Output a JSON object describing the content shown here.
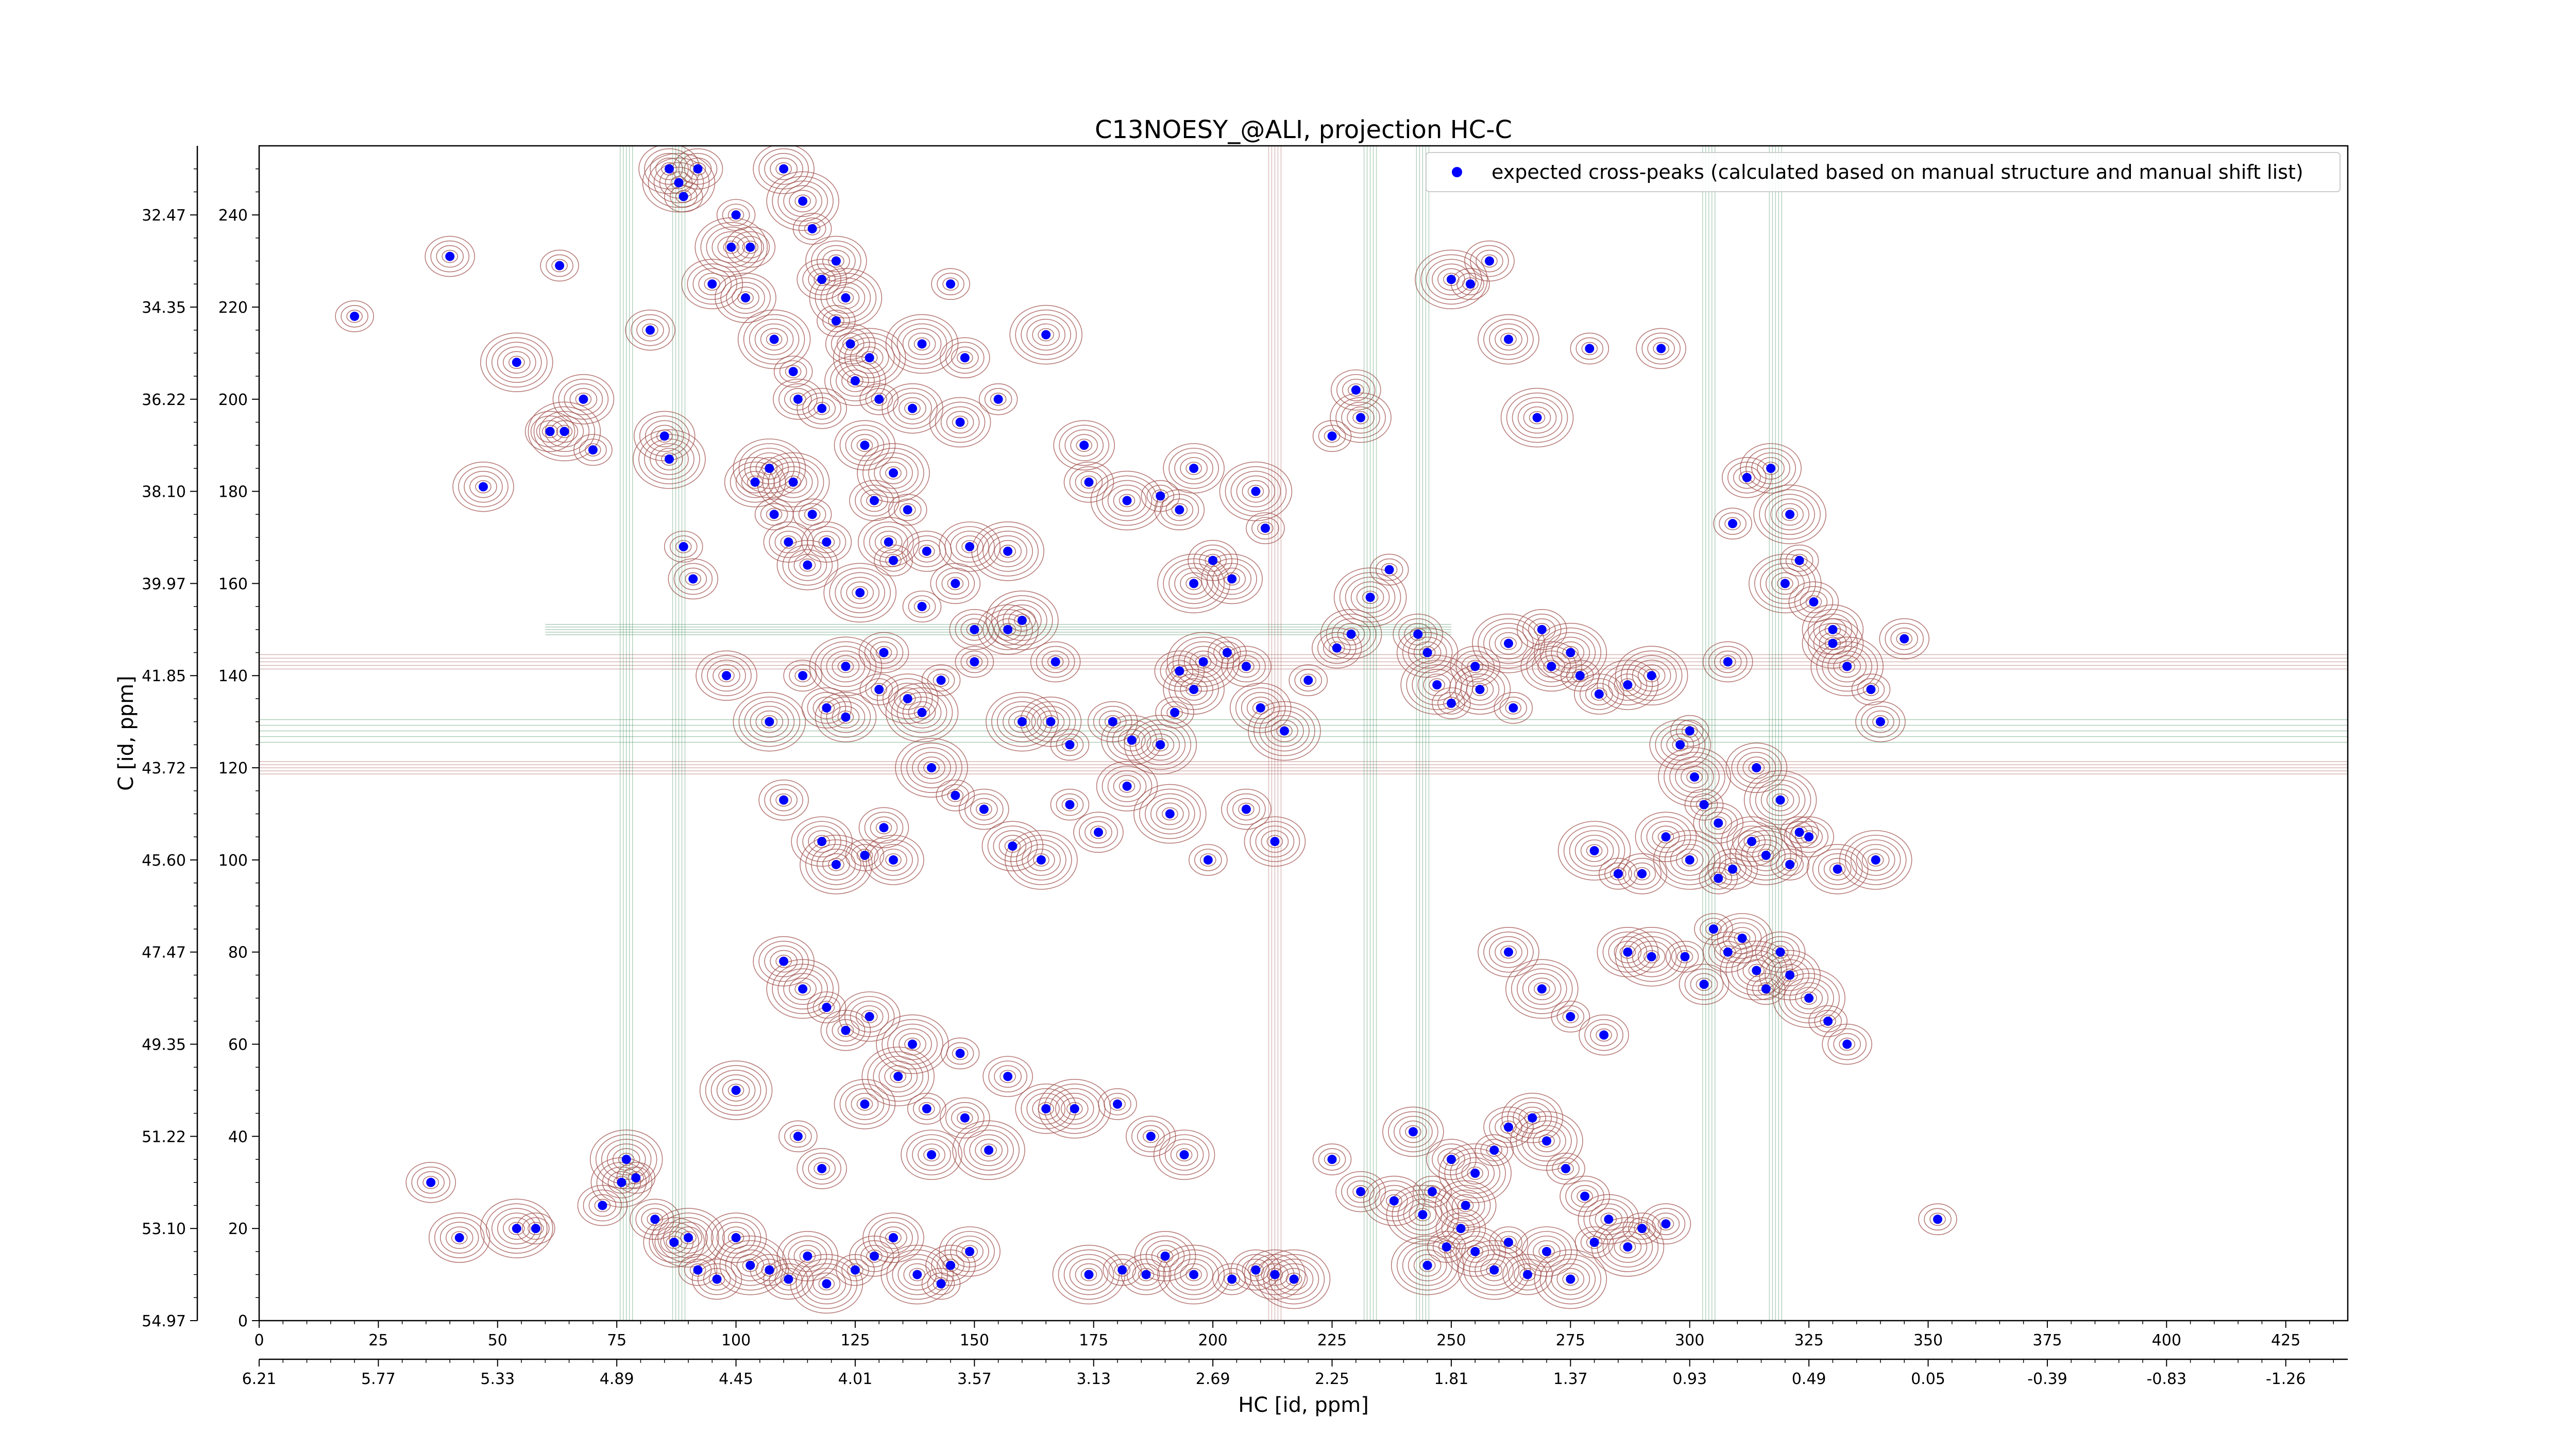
{
  "chart_data": {
    "type": "scatter",
    "title": "C13NOESY_@ALI, projection HC-C",
    "xlabel": "HC [id, ppm]",
    "ylabel": "C [id, ppm]",
    "xlim": [
      0,
      438
    ],
    "ylim": [
      0,
      255
    ],
    "x_ticks": [
      0,
      25,
      50,
      75,
      100,
      125,
      150,
      175,
      200,
      225,
      250,
      275,
      300,
      325,
      350,
      375,
      400,
      425
    ],
    "x_ppm_ticks": [
      "6.21",
      "5.77",
      "5.33",
      "4.89",
      "4.45",
      "4.01",
      "3.57",
      "3.13",
      "2.69",
      "2.25",
      "1.81",
      "1.37",
      "0.93",
      "0.49",
      "0.05",
      "-0.39",
      "-0.83",
      "-1.26"
    ],
    "y_ticks": [
      0,
      20,
      40,
      60,
      80,
      100,
      120,
      140,
      160,
      180,
      200,
      220,
      240
    ],
    "y_ppm_ticks": [
      "54.97",
      "53.10",
      "51.22",
      "49.35",
      "47.47",
      "45.60",
      "43.72",
      "41.85",
      "39.97",
      "38.10",
      "36.22",
      "34.35",
      "32.47"
    ],
    "legend": {
      "label": "expected cross-peaks (calculated based on manual structure and manual shift list)",
      "position": "top-right"
    },
    "colors": {
      "peaks": "#0000ff",
      "positive_contour": "#a0524d",
      "negative_contour": "#3a8a55"
    },
    "grid": false,
    "series": [
      {
        "name": "expected cross-peaks (calculated based on manual structure and manual shift list)",
        "points": [
          [
            20,
            218
          ],
          [
            40,
            231
          ],
          [
            47,
            181
          ],
          [
            54,
            208
          ],
          [
            63,
            229
          ],
          [
            61,
            193
          ],
          [
            68,
            200
          ],
          [
            64,
            193
          ],
          [
            70,
            189
          ],
          [
            82,
            215
          ],
          [
            85,
            192
          ],
          [
            86,
            187
          ],
          [
            89,
            168
          ],
          [
            91,
            161
          ],
          [
            86,
            250
          ],
          [
            88,
            247
          ],
          [
            89,
            244
          ],
          [
            92,
            250
          ],
          [
            95,
            225
          ],
          [
            99,
            233
          ],
          [
            100,
            240
          ],
          [
            103,
            233
          ],
          [
            102,
            222
          ],
          [
            108,
            213
          ],
          [
            112,
            206
          ],
          [
            113,
            200
          ],
          [
            104,
            182
          ],
          [
            107,
            185
          ],
          [
            108,
            175
          ],
          [
            111,
            169
          ],
          [
            115,
            164
          ],
          [
            112,
            182
          ],
          [
            116,
            175
          ],
          [
            119,
            169
          ],
          [
            110,
            250
          ],
          [
            114,
            243
          ],
          [
            116,
            237
          ],
          [
            118,
            226
          ],
          [
            121,
            230
          ],
          [
            123,
            222
          ],
          [
            121,
            217
          ],
          [
            124,
            212
          ],
          [
            125,
            204
          ],
          [
            128,
            209
          ],
          [
            130,
            200
          ],
          [
            118,
            198
          ],
          [
            127,
            190
          ],
          [
            133,
            184
          ],
          [
            136,
            176
          ],
          [
            129,
            178
          ],
          [
            132,
            169
          ],
          [
            126,
            158
          ],
          [
            133,
            165
          ],
          [
            140,
            167
          ],
          [
            149,
            168
          ],
          [
            157,
            167
          ],
          [
            139,
            155
          ],
          [
            146,
            160
          ],
          [
            137,
            198
          ],
          [
            139,
            212
          ],
          [
            145,
            225
          ],
          [
            148,
            209
          ],
          [
            147,
            195
          ],
          [
            165,
            214
          ],
          [
            155,
            200
          ],
          [
            174,
            182
          ],
          [
            173,
            190
          ],
          [
            182,
            178
          ],
          [
            189,
            179
          ],
          [
            193,
            176
          ],
          [
            196,
            185
          ],
          [
            209,
            180
          ],
          [
            211,
            172
          ],
          [
            200,
            165
          ],
          [
            204,
            161
          ],
          [
            196,
            160
          ],
          [
            225,
            192
          ],
          [
            230,
            202
          ],
          [
            231,
            196
          ],
          [
            250,
            226
          ],
          [
            254,
            225
          ],
          [
            258,
            230
          ],
          [
            262,
            213
          ],
          [
            268,
            196
          ],
          [
            279,
            211
          ],
          [
            294,
            211
          ],
          [
            98,
            140
          ],
          [
            107,
            130
          ],
          [
            114,
            140
          ],
          [
            119,
            133
          ],
          [
            123,
            131
          ],
          [
            123,
            142
          ],
          [
            130,
            137
          ],
          [
            131,
            145
          ],
          [
            136,
            135
          ],
          [
            139,
            132
          ],
          [
            143,
            139
          ],
          [
            150,
            150
          ],
          [
            157,
            150
          ],
          [
            160,
            152
          ],
          [
            150,
            143
          ],
          [
            167,
            143
          ],
          [
            166,
            130
          ],
          [
            160,
            130
          ],
          [
            170,
            125
          ],
          [
            179,
            130
          ],
          [
            183,
            126
          ],
          [
            189,
            125
          ],
          [
            192,
            132
          ],
          [
            193,
            141
          ],
          [
            196,
            137
          ],
          [
            198,
            143
          ],
          [
            203,
            145
          ],
          [
            207,
            142
          ],
          [
            210,
            133
          ],
          [
            215,
            128
          ],
          [
            220,
            139
          ],
          [
            226,
            146
          ],
          [
            229,
            149
          ],
          [
            233,
            157
          ],
          [
            237,
            163
          ],
          [
            243,
            149
          ],
          [
            245,
            145
          ],
          [
            247,
            138
          ],
          [
            250,
            134
          ],
          [
            255,
            142
          ],
          [
            256,
            137
          ],
          [
            262,
            147
          ],
          [
            263,
            133
          ],
          [
            269,
            150
          ],
          [
            271,
            142
          ],
          [
            275,
            145
          ],
          [
            277,
            140
          ],
          [
            281,
            136
          ],
          [
            287,
            138
          ],
          [
            292,
            140
          ],
          [
            300,
            128
          ],
          [
            308,
            143
          ],
          [
            314,
            120
          ],
          [
            319,
            113
          ],
          [
            323,
            106
          ],
          [
            110,
            113
          ],
          [
            118,
            104
          ],
          [
            121,
            99
          ],
          [
            127,
            101
          ],
          [
            131,
            107
          ],
          [
            133,
            100
          ],
          [
            141,
            120
          ],
          [
            146,
            114
          ],
          [
            152,
            111
          ],
          [
            158,
            103
          ],
          [
            164,
            100
          ],
          [
            170,
            112
          ],
          [
            176,
            106
          ],
          [
            182,
            116
          ],
          [
            191,
            110
          ],
          [
            199,
            100
          ],
          [
            207,
            111
          ],
          [
            213,
            104
          ],
          [
            280,
            102
          ],
          [
            285,
            97
          ],
          [
            290,
            97
          ],
          [
            295,
            105
          ],
          [
            300,
            100
          ],
          [
            306,
            96
          ],
          [
            309,
            98
          ],
          [
            313,
            104
          ],
          [
            316,
            101
          ],
          [
            321,
            99
          ],
          [
            325,
            105
          ],
          [
            331,
            98
          ],
          [
            339,
            100
          ],
          [
            305,
            85
          ],
          [
            308,
            80
          ],
          [
            311,
            83
          ],
          [
            314,
            76
          ],
          [
            316,
            72
          ],
          [
            319,
            80
          ],
          [
            321,
            75
          ],
          [
            325,
            70
          ],
          [
            329,
            65
          ],
          [
            333,
            60
          ],
          [
            287,
            80
          ],
          [
            292,
            79
          ],
          [
            299,
            79
          ],
          [
            303,
            73
          ],
          [
            262,
            80
          ],
          [
            269,
            72
          ],
          [
            275,
            66
          ],
          [
            282,
            62
          ],
          [
            110,
            78
          ],
          [
            114,
            72
          ],
          [
            119,
            68
          ],
          [
            123,
            63
          ],
          [
            128,
            66
          ],
          [
            137,
            60
          ],
          [
            147,
            58
          ],
          [
            157,
            53
          ],
          [
            165,
            46
          ],
          [
            171,
            46
          ],
          [
            180,
            47
          ],
          [
            187,
            40
          ],
          [
            194,
            36
          ],
          [
            100,
            50
          ],
          [
            113,
            40
          ],
          [
            118,
            33
          ],
          [
            127,
            47
          ],
          [
            134,
            53
          ],
          [
            140,
            46
          ],
          [
            148,
            44
          ],
          [
            141,
            36
          ],
          [
            153,
            37
          ],
          [
            225,
            35
          ],
          [
            231,
            28
          ],
          [
            238,
            26
          ],
          [
            244,
            23
          ],
          [
            246,
            28
          ],
          [
            250,
            35
          ],
          [
            253,
            25
          ],
          [
            255,
            32
          ],
          [
            259,
            37
          ],
          [
            262,
            42
          ],
          [
            267,
            44
          ],
          [
            270,
            39
          ],
          [
            274,
            33
          ],
          [
            278,
            27
          ],
          [
            283,
            22
          ],
          [
            287,
            16
          ],
          [
            290,
            20
          ],
          [
            295,
            21
          ],
          [
            242,
            41
          ],
          [
            245,
            12
          ],
          [
            249,
            16
          ],
          [
            252,
            20
          ],
          [
            255,
            15
          ],
          [
            259,
            11
          ],
          [
            262,
            17
          ],
          [
            266,
            10
          ],
          [
            270,
            15
          ],
          [
            275,
            9
          ],
          [
            280,
            17
          ],
          [
            36,
            30
          ],
          [
            42,
            18
          ],
          [
            54,
            20
          ],
          [
            58,
            20
          ],
          [
            72,
            25
          ],
          [
            76,
            30
          ],
          [
            77,
            35
          ],
          [
            79,
            31
          ],
          [
            83,
            22
          ],
          [
            87,
            17
          ],
          [
            90,
            18
          ],
          [
            92,
            11
          ],
          [
            96,
            9
          ],
          [
            100,
            18
          ],
          [
            103,
            12
          ],
          [
            107,
            11
          ],
          [
            111,
            9
          ],
          [
            115,
            14
          ],
          [
            119,
            8
          ],
          [
            125,
            11
          ],
          [
            129,
            14
          ],
          [
            133,
            18
          ],
          [
            138,
            10
          ],
          [
            143,
            8
          ],
          [
            145,
            12
          ],
          [
            149,
            15
          ],
          [
            174,
            10
          ],
          [
            181,
            11
          ],
          [
            186,
            10
          ],
          [
            190,
            14
          ],
          [
            196,
            10
          ],
          [
            204,
            9
          ],
          [
            209,
            11
          ],
          [
            213,
            10
          ],
          [
            217,
            9
          ],
          [
            352,
            22
          ],
          [
            345,
            148
          ],
          [
            330,
            147
          ],
          [
            320,
            160
          ],
          [
            309,
            173
          ],
          [
            312,
            183
          ],
          [
            317,
            185
          ],
          [
            321,
            175
          ],
          [
            323,
            165
          ],
          [
            326,
            156
          ],
          [
            330,
            150
          ],
          [
            333,
            142
          ],
          [
            338,
            137
          ],
          [
            340,
            130
          ],
          [
            298,
            125
          ],
          [
            301,
            118
          ],
          [
            303,
            112
          ],
          [
            306,
            108
          ]
        ]
      }
    ]
  }
}
